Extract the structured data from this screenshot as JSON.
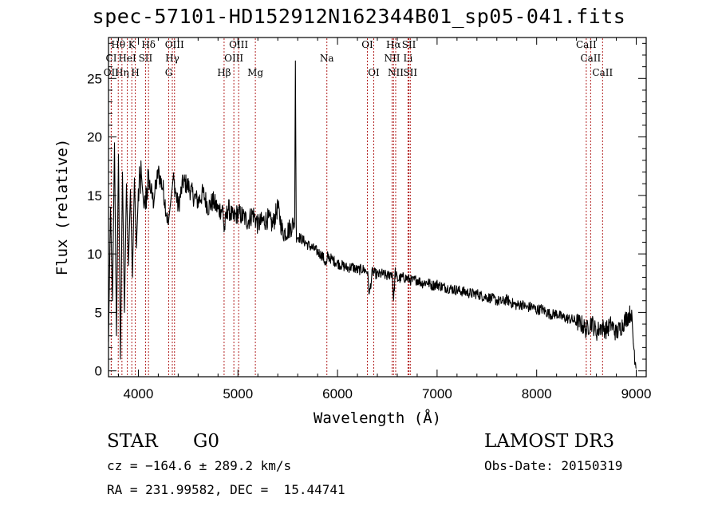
{
  "chart_data": {
    "type": "line",
    "title": "spec-57101-HD152912N162344B01_sp05-041.fits",
    "xlabel": "Wavelength (Å)",
    "ylabel": "Flux (relative)",
    "xlim": [
      3700,
      9100
    ],
    "ylim": [
      -0.5,
      28.5
    ],
    "x_ticks": [
      4000,
      5000,
      6000,
      7000,
      8000,
      9000
    ],
    "y_ticks": [
      0,
      5,
      10,
      15,
      20,
      25
    ],
    "series": [
      {
        "name": "spectrum",
        "x": [
          3700,
          3720,
          3740,
          3760,
          3780,
          3800,
          3820,
          3840,
          3860,
          3880,
          3900,
          3920,
          3940,
          3960,
          3980,
          4000,
          4030,
          4060,
          4100,
          4150,
          4200,
          4250,
          4300,
          4350,
          4400,
          4450,
          4500,
          4550,
          4600,
          4650,
          4700,
          4750,
          4800,
          4850,
          4861,
          4900,
          4950,
          5000,
          5050,
          5100,
          5150,
          5200,
          5250,
          5300,
          5350,
          5400,
          5450,
          5500,
          5550,
          5570,
          5577,
          5585,
          5600,
          5650,
          5700,
          5750,
          5800,
          5850,
          5890,
          5900,
          5950,
          6000,
          6050,
          6100,
          6150,
          6200,
          6250,
          6300,
          6320,
          6350,
          6400,
          6450,
          6500,
          6550,
          6563,
          6580,
          6600,
          6650,
          6700,
          6750,
          6800,
          6850,
          6900,
          6950,
          7000,
          7050,
          7100,
          7150,
          7200,
          7250,
          7300,
          7350,
          7400,
          7450,
          7500,
          7550,
          7600,
          7650,
          7700,
          7750,
          7800,
          7850,
          7900,
          7950,
          8000,
          8050,
          8100,
          8150,
          8200,
          8250,
          8300,
          8350,
          8400,
          8450,
          8500,
          8550,
          8600,
          8650,
          8700,
          8750,
          8800,
          8850,
          8900,
          8950,
          8970,
          9000
        ],
        "values": [
          2.5,
          14.0,
          6.0,
          19.5,
          3.0,
          18.5,
          1.0,
          17.0,
          5.0,
          16.0,
          9.0,
          15.5,
          8.0,
          16.5,
          10.5,
          15.0,
          16.8,
          13.5,
          16.5,
          14.5,
          17.0,
          15.5,
          12.5,
          16.5,
          14.0,
          16.2,
          15.8,
          15.0,
          14.5,
          15.2,
          14.0,
          14.5,
          13.8,
          13.8,
          12.0,
          14.0,
          13.0,
          13.5,
          13.2,
          12.8,
          13.5,
          12.5,
          12.8,
          13.0,
          12.5,
          14.0,
          11.8,
          12.0,
          12.5,
          12.8,
          26.5,
          12.0,
          11.5,
          11.2,
          10.8,
          10.5,
          10.2,
          9.8,
          9.0,
          9.8,
          9.5,
          9.2,
          9.0,
          8.8,
          8.9,
          8.6,
          8.7,
          8.5,
          6.5,
          8.5,
          8.2,
          8.3,
          8.1,
          8.4,
          6.0,
          8.5,
          7.8,
          8.0,
          7.9,
          7.7,
          7.8,
          7.5,
          7.6,
          7.3,
          7.4,
          7.2,
          7.1,
          7.0,
          6.9,
          6.8,
          6.7,
          6.6,
          6.6,
          6.4,
          6.3,
          6.2,
          6.0,
          5.9,
          6.1,
          5.8,
          5.6,
          5.7,
          5.4,
          5.5,
          5.2,
          5.3,
          5.0,
          4.8,
          4.9,
          4.6,
          4.5,
          4.4,
          4.2,
          4.0,
          3.5,
          4.2,
          3.3,
          3.8,
          3.5,
          4.0,
          3.2,
          3.8,
          4.5,
          5.0,
          2.5,
          0.2
        ]
      }
    ],
    "spectral_lines": [
      {
        "label": "Hθ",
        "x": 3798,
        "row": 0
      },
      {
        "label": "K",
        "x": 3934,
        "row": 0
      },
      {
        "label": "Hδ",
        "x": 4102,
        "row": 0
      },
      {
        "label": "OIII",
        "x": 4363,
        "row": 0
      },
      {
        "label": "OIII",
        "x": 5007,
        "row": 0
      },
      {
        "label": "OI",
        "x": 6300,
        "row": 0
      },
      {
        "label": "Hα",
        "x": 6563,
        "row": 0
      },
      {
        "label": "SII",
        "x": 6717,
        "row": 0
      },
      {
        "label": "CaII",
        "x": 8498,
        "row": 0
      },
      {
        "label": "CI",
        "x": 3728,
        "row": 1
      },
      {
        "label": "HeI",
        "x": 3889,
        "row": 1
      },
      {
        "label": "SII",
        "x": 4072,
        "row": 1
      },
      {
        "label": "Hγ",
        "x": 4341,
        "row": 1
      },
      {
        "label": "OIII",
        "x": 4959,
        "row": 1
      },
      {
        "label": "Na",
        "x": 5893,
        "row": 1
      },
      {
        "label": "NII",
        "x": 6548,
        "row": 1
      },
      {
        "label": "Li",
        "x": 6708,
        "row": 1
      },
      {
        "label": "CaII",
        "x": 8542,
        "row": 1
      },
      {
        "label": "OII",
        "x": 3727,
        "row": 2
      },
      {
        "label": "Hη",
        "x": 3835,
        "row": 2
      },
      {
        "label": "H",
        "x": 3969,
        "row": 2
      },
      {
        "label": "G",
        "x": 4305,
        "row": 2
      },
      {
        "label": "Hβ",
        "x": 4861,
        "row": 2
      },
      {
        "label": "Mg",
        "x": 5175,
        "row": 2
      },
      {
        "label": "OI",
        "x": 6364,
        "row": 2
      },
      {
        "label": "NII",
        "x": 6584,
        "row": 2
      },
      {
        "label": "SII",
        "x": 6731,
        "row": 2
      },
      {
        "label": "CaII",
        "x": 8662,
        "row": 2
      }
    ]
  },
  "info": {
    "object_class": "STAR",
    "subclass": "G0",
    "survey": "LAMOST DR3",
    "cz": "cz = −164.6 ± 289.2 km/s",
    "obs_date": "Obs-Date: 20150319",
    "coords": "RA = 231.99582, DEC =  15.44741"
  },
  "colors": {
    "line_marker": "#b22222",
    "spectrum": "#000000",
    "axis": "#000000"
  }
}
